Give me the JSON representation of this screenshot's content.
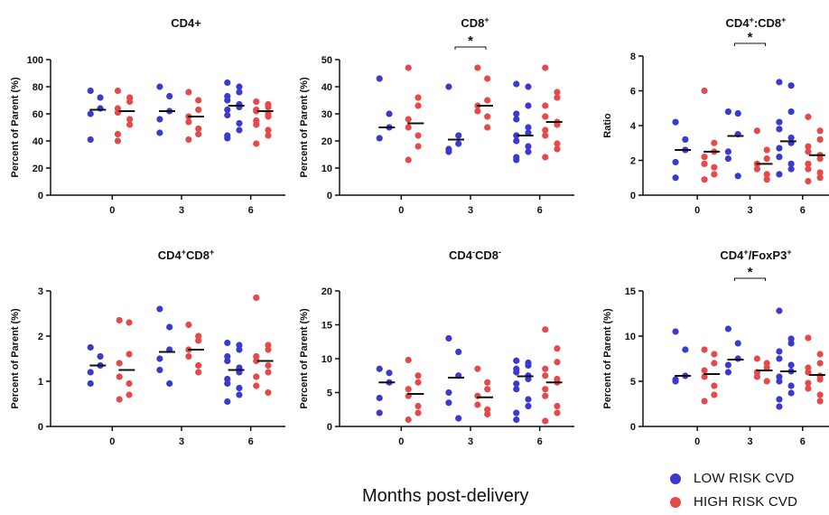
{
  "x_axis_label": "Months post-delivery",
  "legend": {
    "low": {
      "label": "LOW RISK CVD",
      "color": "#3a3acf"
    },
    "high": {
      "label": "HIGH RISK CVD",
      "color": "#e54a4a"
    }
  },
  "chart_data": [
    {
      "type": "scatter",
      "title": "CD4+",
      "ylabel": "Percent of Parent (%)",
      "ylim": [
        0,
        100
      ],
      "yticks": [
        0,
        20,
        40,
        60,
        80,
        100
      ],
      "categories": [
        "0",
        "3",
        "6"
      ],
      "significance": [],
      "series": [
        {
          "name": "LOW RISK CVD",
          "medians": [
            63,
            62,
            66
          ],
          "points": [
            [
              77,
              72,
              64,
              60,
              41
            ],
            [
              80,
              73,
              62,
              56,
              46
            ],
            [
              83,
              80,
              76,
              73,
              70,
              67,
              65,
              63,
              59,
              53,
              48,
              44,
              42
            ]
          ]
        },
        {
          "name": "HIGH RISK CVD",
          "medians": [
            62,
            58,
            62
          ],
          "points": [
            [
              77,
              72,
              69,
              64,
              61,
              56,
              52,
              45,
              40
            ],
            [
              76,
              70,
              63,
              58,
              54,
              49,
              45,
              41
            ],
            [
              69,
              67,
              65,
              63,
              62,
              60,
              58,
              55,
              52,
              48,
              44,
              38
            ]
          ]
        }
      ]
    },
    {
      "type": "scatter",
      "title": "CD8",
      "title_sup": "+",
      "ylabel": "Percent of Parent (%)",
      "ylim": [
        0,
        50
      ],
      "yticks": [
        0,
        10,
        20,
        30,
        40,
        50
      ],
      "categories": [
        "0",
        "3",
        "6"
      ],
      "significance": [
        {
          "between": "3",
          "label": "*"
        }
      ],
      "series": [
        {
          "name": "LOW RISK CVD",
          "medians": [
            25,
            20.5,
            22
          ],
          "points": [
            [
              43,
              30,
              25,
              21
            ],
            [
              40,
              22,
              19,
              17,
              16
            ],
            [
              41,
              40,
              33,
              30,
              28,
              25,
              23,
              22,
              20,
              18,
              16,
              14,
              13
            ]
          ]
        },
        {
          "name": "HIGH RISK CVD",
          "medians": [
            26.5,
            33,
            27
          ],
          "points": [
            [
              47,
              36,
              33,
              28,
              25,
              22,
              18,
              13
            ],
            [
              47,
              43,
              35,
              33,
              31,
              29,
              25
            ],
            [
              47,
              38,
              36,
              33,
              29,
              27,
              26,
              24,
              22,
              19,
              17,
              14
            ]
          ]
        }
      ]
    },
    {
      "type": "scatter",
      "title": "CD4",
      "title_parts": [
        [
          "CD4",
          ""
        ],
        [
          "+",
          "sup"
        ],
        [
          ":CD8",
          ""
        ],
        [
          "+",
          "sup"
        ]
      ],
      "ylabel": "Ratio",
      "ylim": [
        0,
        8
      ],
      "yticks": [
        0,
        2,
        4,
        6,
        8
      ],
      "categories": [
        "0",
        "3",
        "6"
      ],
      "significance": [
        {
          "between": "3",
          "label": "*"
        }
      ],
      "series": [
        {
          "name": "LOW RISK CVD",
          "medians": [
            2.6,
            3.4,
            3.1
          ],
          "points": [
            [
              4.2,
              3.2,
              2.6,
              1.9,
              1.0
            ],
            [
              4.8,
              4.7,
              3.5,
              2.5,
              2.1,
              1.1
            ],
            [
              6.5,
              6.3,
              4.8,
              4.2,
              3.8,
              3.3,
              3.0,
              2.7,
              2.2,
              1.8,
              1.5,
              1.2
            ]
          ]
        },
        {
          "name": "HIGH RISK CVD",
          "medians": [
            2.5,
            1.8,
            2.3
          ],
          "points": [
            [
              6.0,
              3.0,
              2.5,
              2.2,
              1.8,
              1.6,
              1.2,
              0.9
            ],
            [
              3.7,
              2.6,
              2.1,
              1.8,
              1.5,
              1.2,
              0.9
            ],
            [
              4.5,
              3.7,
              3.2,
              2.8,
              2.5,
              2.3,
              2.1,
              1.8,
              1.5,
              1.3,
              1.0,
              0.8
            ]
          ]
        }
      ]
    },
    {
      "type": "scatter",
      "title_parts": [
        [
          "CD4",
          ""
        ],
        [
          "+",
          "sup"
        ],
        [
          "CD8",
          ""
        ],
        [
          "+",
          "sup"
        ]
      ],
      "ylabel": "Percent of Parent (%)",
      "ylim": [
        0,
        3
      ],
      "yticks": [
        0,
        1,
        2,
        3
      ],
      "categories": [
        "0",
        "3",
        "6"
      ],
      "significance": [],
      "series": [
        {
          "name": "LOW RISK CVD",
          "medians": [
            1.35,
            1.65,
            1.25
          ],
          "points": [
            [
              1.75,
              1.55,
              1.35,
              1.2,
              0.95
            ],
            [
              2.6,
              2.2,
              1.7,
              1.5,
              1.25,
              0.95
            ],
            [
              1.85,
              1.8,
              1.7,
              1.55,
              1.45,
              1.3,
              1.2,
              1.05,
              0.95,
              0.85,
              0.7,
              0.55
            ]
          ]
        },
        {
          "name": "HIGH RISK CVD",
          "medians": [
            1.25,
            1.7,
            1.45
          ],
          "points": [
            [
              2.35,
              2.3,
              1.6,
              1.4,
              1.1,
              0.95,
              0.7,
              0.6
            ],
            [
              2.25,
              2.0,
              1.9,
              1.7,
              1.55,
              1.35,
              1.2
            ],
            [
              2.85,
              1.8,
              1.7,
              1.55,
              1.45,
              1.35,
              1.2,
              1.1,
              0.9,
              0.75
            ]
          ]
        }
      ]
    },
    {
      "type": "scatter",
      "title_parts": [
        [
          "CD4",
          ""
        ],
        [
          "-",
          "sup"
        ],
        [
          "CD8",
          ""
        ],
        [
          "-",
          "sup"
        ]
      ],
      "ylabel": "Percent of Parent (%)",
      "ylim": [
        0,
        20
      ],
      "yticks": [
        0,
        5,
        10,
        15,
        20
      ],
      "categories": [
        "0",
        "3",
        "6"
      ],
      "significance": [],
      "series": [
        {
          "name": "LOW RISK CVD",
          "medians": [
            6.5,
            7.2,
            7.4
          ],
          "points": [
            [
              8.5,
              7.9,
              6.5,
              4.2,
              2.0
            ],
            [
              13.0,
              11.0,
              7.5,
              5.0,
              3.5,
              1.2
            ],
            [
              9.7,
              9.4,
              9.0,
              8.5,
              8.0,
              7.5,
              7.0,
              6.3,
              5.5,
              4.0,
              3.0,
              2.0,
              1.0
            ]
          ]
        },
        {
          "name": "HIGH RISK CVD",
          "medians": [
            4.8,
            4.3,
            6.5
          ],
          "points": [
            [
              9.8,
              7.5,
              6.5,
              5.5,
              4.5,
              3.0,
              2.0,
              1.0
            ],
            [
              8.5,
              6.5,
              5.5,
              4.5,
              3.2,
              2.5,
              1.8
            ],
            [
              14.3,
              11.5,
              9.5,
              8.5,
              7.5,
              7.0,
              6.5,
              5.5,
              4.5,
              3.0,
              2.0,
              0.8
            ]
          ]
        }
      ]
    },
    {
      "type": "scatter",
      "title_parts": [
        [
          "CD4",
          ""
        ],
        [
          "+",
          "sup"
        ],
        [
          "/FoxP3",
          ""
        ],
        [
          "+",
          "sup"
        ]
      ],
      "ylabel": "Percent of Parent (%)",
      "ylim": [
        0,
        15
      ],
      "yticks": [
        0,
        5,
        10,
        15
      ],
      "categories": [
        "0",
        "3",
        "6"
      ],
      "significance": [
        {
          "between": "3",
          "label": "*"
        }
      ],
      "series": [
        {
          "name": "LOW RISK CVD",
          "medians": [
            5.6,
            7.4,
            6.1
          ],
          "points": [
            [
              10.5,
              8.5,
              5.6,
              5.2,
              5.0
            ],
            [
              10.8,
              9.2,
              7.5,
              6.8,
              6.0
            ],
            [
              12.8,
              9.7,
              9.2,
              8.3,
              7.5,
              6.8,
              6.1,
              5.5,
              5.0,
              4.5,
              3.7,
              3.0,
              2.2
            ]
          ]
        },
        {
          "name": "HIGH RISK CVD",
          "medians": [
            5.8,
            6.2,
            5.7
          ],
          "points": [
            [
              8.5,
              8.0,
              7.0,
              6.2,
              5.5,
              4.5,
              3.5,
              2.8
            ],
            [
              7.5,
              7.0,
              6.5,
              6.0,
              5.5,
              5.0
            ],
            [
              9.8,
              8.0,
              7.0,
              6.5,
              6.0,
              5.6,
              5.2,
              4.8,
              4.2,
              3.5,
              2.8
            ]
          ]
        }
      ]
    }
  ]
}
